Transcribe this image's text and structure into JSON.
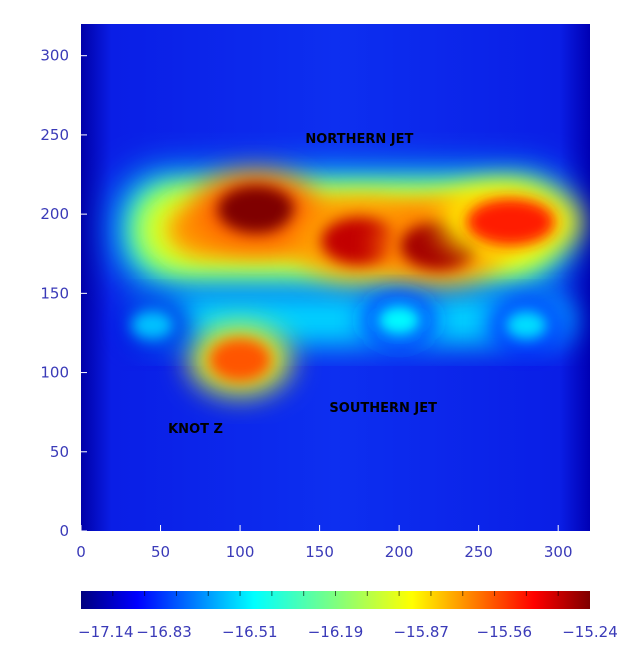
{
  "chart_data": {
    "type": "heatmap",
    "title": "",
    "xlabel": "",
    "ylabel": "",
    "xlim": [
      0,
      320
    ],
    "ylim": [
      0,
      320
    ],
    "x_ticks": [
      0,
      50,
      100,
      150,
      200,
      250,
      300
    ],
    "y_ticks": [
      0,
      50,
      100,
      150,
      200,
      250,
      300
    ],
    "x_tick_labels": [
      "0",
      "50",
      "100",
      "150",
      "200",
      "250",
      "300"
    ],
    "y_tick_labels": [
      "0",
      "50",
      "100",
      "150",
      "200",
      "250",
      "300"
    ],
    "colorscale": {
      "min": -17.14,
      "max": -15.24,
      "ticks": [
        -17.14,
        -16.83,
        -16.51,
        -16.19,
        -15.87,
        -15.56,
        -15.24
      ],
      "tick_labels": [
        "−17.14",
        "−16.83",
        "−16.51",
        "−16.19",
        "−15.87",
        "−15.56",
        "−15.24"
      ],
      "colormap": "jet",
      "placement": "bottom"
    },
    "annotations": [
      {
        "text": "NORTHERN JET",
        "x": 175,
        "y": 245
      },
      {
        "text": "SOUTHERN JET",
        "x": 190,
        "y": 75
      },
      {
        "text": "KNOT Z",
        "x": 72,
        "y": 62
      }
    ],
    "features": [
      {
        "x": 110,
        "y": 203,
        "value": -15.24
      },
      {
        "x": 175,
        "y": 183,
        "value": -15.35
      },
      {
        "x": 225,
        "y": 180,
        "value": -15.3
      },
      {
        "x": 270,
        "y": 195,
        "value": -15.5
      },
      {
        "x": 100,
        "y": 108,
        "value": -15.6
      },
      {
        "x": 200,
        "y": 133,
        "value": -16.5
      },
      {
        "x": 280,
        "y": 130,
        "value": -16.55
      },
      {
        "x": 45,
        "y": 130,
        "value": -16.6
      }
    ],
    "grid": false
  }
}
